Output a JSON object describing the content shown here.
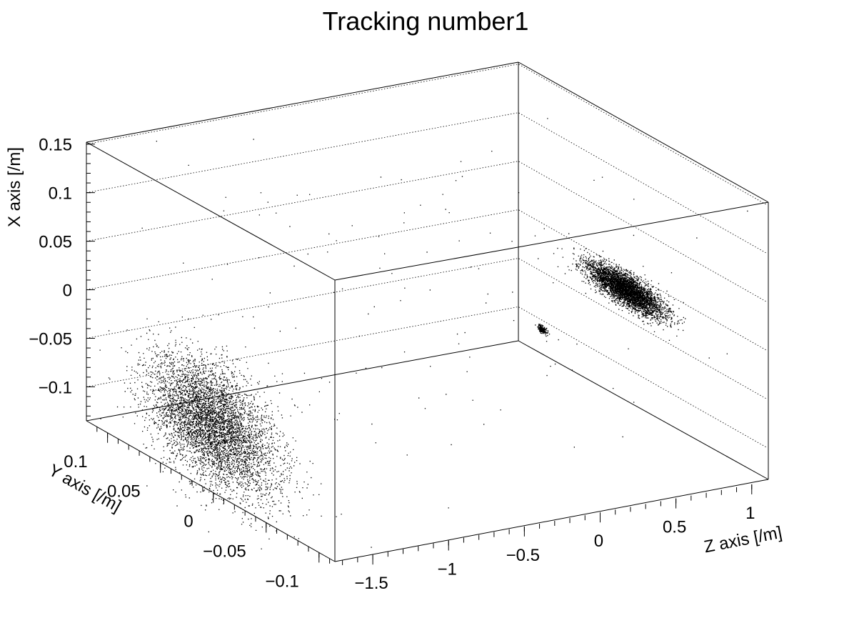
{
  "chart_data": {
    "type": "scatter",
    "dimensions": 3,
    "title": "Tracking number1",
    "x_axis": {
      "label": "X axis [/m]",
      "range": [
        -0.135,
        0.152
      ],
      "ticks": [
        {
          "value": 0.15,
          "label": "0.15"
        },
        {
          "value": 0.1,
          "label": "0.1"
        },
        {
          "value": 0.05,
          "label": "0.05"
        },
        {
          "value": 0,
          "label": "0"
        },
        {
          "value": -0.05,
          "label": "−0.05"
        },
        {
          "value": -0.1,
          "label": "−0.1"
        }
      ]
    },
    "y_axis": {
      "label": "Y axis [/m]",
      "range": [
        -0.115,
        0.12
      ],
      "ticks": [
        {
          "value": 0.1,
          "label": "0.1"
        },
        {
          "value": 0.05,
          "label": "0.05"
        },
        {
          "value": 0,
          "label": "0"
        },
        {
          "value": -0.05,
          "label": "−0.05"
        },
        {
          "value": -0.1,
          "label": "−0.1"
        }
      ]
    },
    "z_axis": {
      "label": "Z axis [/m]",
      "range": [
        -1.75,
        1.1
      ],
      "ticks": [
        {
          "value": -1.5,
          "label": "−1.5"
        },
        {
          "value": -1,
          "label": "−1"
        },
        {
          "value": -0.5,
          "label": "−0.5"
        },
        {
          "value": 0,
          "label": "0"
        },
        {
          "value": 0.5,
          "label": "0.5"
        },
        {
          "value": 1,
          "label": "1"
        }
      ]
    },
    "clusters": [
      {
        "z": -1.75,
        "x_mean": -0.065,
        "y_mean": 0.0,
        "x_sigma": 0.03,
        "y_sigma": 0.03
      },
      {
        "z": 0.55,
        "x_mean": 0.045,
        "y_mean": -0.06,
        "x_sigma": 0.008,
        "y_sigma": 0.018
      },
      {
        "z": 0.0,
        "x_mean": 0.02,
        "y_mean": -0.06,
        "x_sigma": 0.002,
        "y_sigma": 0.002
      }
    ],
    "grid": true,
    "marker_color": "#000000"
  }
}
